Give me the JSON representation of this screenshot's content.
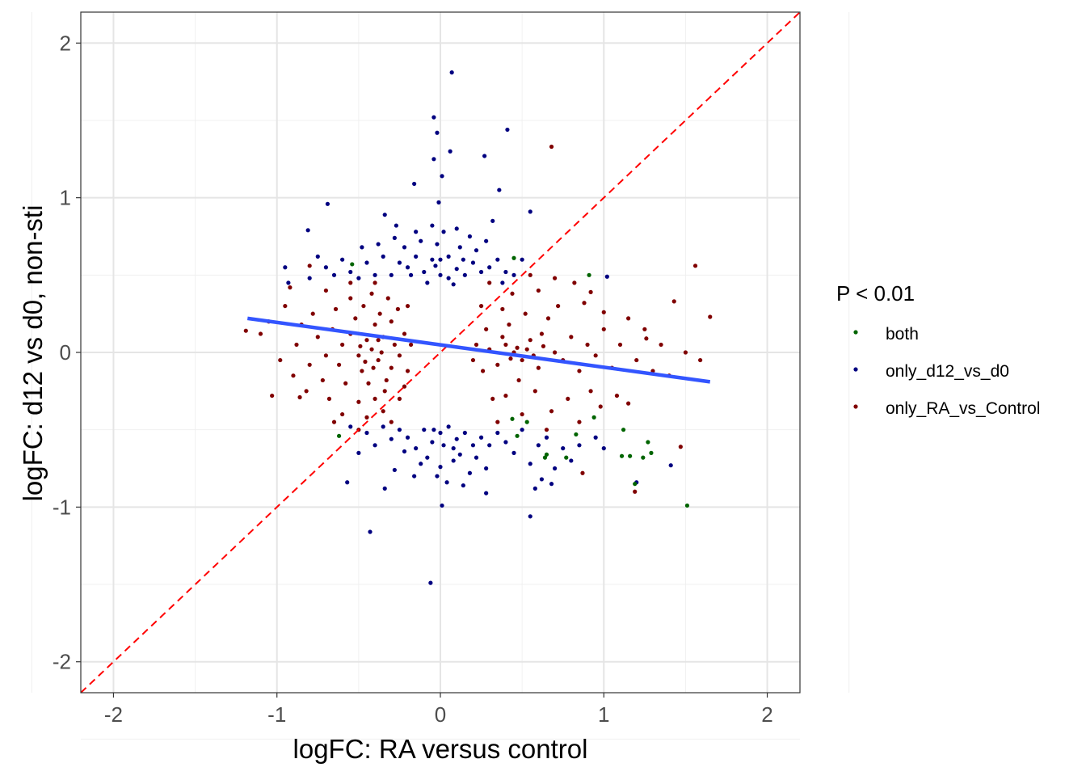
{
  "chart_data": {
    "type": "scatter",
    "xlabel": "logFC: RA versus control",
    "ylabel": "logFC: d12 vs d0, non-sti",
    "xlim": [
      -2.2,
      2.2
    ],
    "ylim": [
      -2.2,
      2.2
    ],
    "x_ticks": [
      -2,
      -1,
      0,
      1,
      2
    ],
    "y_ticks": [
      -2,
      -1,
      0,
      1,
      2
    ],
    "x_tick_labels": [
      "-2",
      "-1",
      "0",
      "1",
      "2"
    ],
    "y_tick_labels": [
      "-2",
      "-1",
      "0",
      "1",
      "2"
    ],
    "grid": true,
    "legend": {
      "title": "P < 0.01",
      "placement": "right"
    },
    "reference_line": {
      "type": "identity",
      "slope": 1,
      "intercept": 0,
      "color": "#ff0000",
      "style": "dashed"
    },
    "fit_line": {
      "x": [
        -1.18,
        1.65
      ],
      "y": [
        0.22,
        -0.19
      ],
      "color": "#3355ff"
    },
    "series": [
      {
        "name": "both",
        "color": "#006400",
        "points": [
          [
            -0.54,
            0.57
          ],
          [
            0.45,
            0.61
          ],
          [
            0.91,
            0.5
          ],
          [
            1.51,
            -0.99
          ],
          [
            1.19,
            -0.85
          ],
          [
            -0.62,
            -0.54
          ],
          [
            1.27,
            -0.58
          ],
          [
            1.29,
            -0.65
          ],
          [
            1.16,
            -0.67
          ],
          [
            0.65,
            -0.66
          ],
          [
            0.64,
            -0.68
          ],
          [
            0.77,
            -0.68
          ],
          [
            0.83,
            -0.53
          ],
          [
            1.12,
            -0.5
          ],
          [
            0.53,
            -0.45
          ],
          [
            0.44,
            -0.43
          ],
          [
            0.94,
            -0.42
          ],
          [
            0.47,
            -0.54
          ],
          [
            1.11,
            -0.67
          ],
          [
            1.24,
            -0.68
          ]
        ]
      },
      {
        "name": "only_d12_vs_d0",
        "color": "#000080",
        "points": [
          [
            0.07,
            1.81
          ],
          [
            -0.04,
            1.52
          ],
          [
            -0.02,
            1.42
          ],
          [
            0.41,
            1.44
          ],
          [
            0.06,
            1.3
          ],
          [
            -0.04,
            1.25
          ],
          [
            0.27,
            1.27
          ],
          [
            0.01,
            1.14
          ],
          [
            -0.16,
            1.09
          ],
          [
            0.36,
            1.05
          ],
          [
            -0.01,
            0.97
          ],
          [
            -0.69,
            0.96
          ],
          [
            -0.81,
            0.79
          ],
          [
            -0.34,
            0.89
          ],
          [
            0.55,
            0.91
          ],
          [
            -0.27,
            0.82
          ],
          [
            0.01,
            -0.99
          ],
          [
            -0.43,
            -1.16
          ],
          [
            -0.06,
            -1.49
          ],
          [
            0.55,
            -1.06
          ],
          [
            -0.57,
            -0.84
          ],
          [
            -0.34,
            -0.88
          ],
          [
            1.02,
            0.49
          ],
          [
            1.41,
            -0.73
          ],
          [
            -0.95,
            0.55
          ],
          [
            -0.93,
            0.45
          ],
          [
            0.28,
            -0.91
          ],
          [
            0.14,
            -0.86
          ],
          [
            -0.2,
            0.55
          ],
          [
            -0.1,
            0.52
          ],
          [
            0.0,
            0.5
          ],
          [
            0.1,
            0.54
          ],
          [
            0.2,
            0.58
          ],
          [
            -0.15,
            0.62
          ],
          [
            -0.05,
            0.6
          ],
          [
            0.05,
            0.48
          ],
          [
            0.15,
            0.5
          ],
          [
            0.25,
            0.52
          ],
          [
            -0.25,
            0.58
          ],
          [
            -0.3,
            0.5
          ],
          [
            0.3,
            0.55
          ],
          [
            0.35,
            0.6
          ],
          [
            -0.35,
            0.62
          ],
          [
            -0.08,
            0.45
          ],
          [
            0.08,
            0.44
          ],
          [
            -0.02,
            0.7
          ],
          [
            0.12,
            0.68
          ],
          [
            -0.12,
            0.72
          ],
          [
            0.22,
            0.66
          ],
          [
            -0.22,
            0.68
          ],
          [
            0.4,
            0.52
          ],
          [
            -0.4,
            0.5
          ],
          [
            -0.45,
            0.58
          ],
          [
            0.45,
            0.5
          ],
          [
            -0.5,
            0.48
          ],
          [
            -0.55,
            0.52
          ],
          [
            -0.6,
            0.6
          ],
          [
            -0.65,
            0.5
          ],
          [
            -0.7,
            0.55
          ],
          [
            -0.75,
            0.62
          ],
          [
            -0.8,
            0.48
          ],
          [
            0.02,
            0.78
          ],
          [
            -0.05,
            0.82
          ],
          [
            0.1,
            0.8
          ],
          [
            -0.15,
            0.78
          ],
          [
            0.18,
            0.75
          ],
          [
            -0.28,
            0.74
          ],
          [
            0.28,
            0.72
          ],
          [
            0.32,
            0.85
          ],
          [
            -0.38,
            0.7
          ],
          [
            0.0,
            0.6
          ],
          [
            0.05,
            0.62
          ],
          [
            -0.03,
            0.56
          ],
          [
            0.14,
            0.6
          ],
          [
            -0.18,
            0.5
          ],
          [
            0.38,
            0.45
          ],
          [
            -0.48,
            0.68
          ],
          [
            0.5,
            0.6
          ],
          [
            -0.2,
            -0.55
          ],
          [
            -0.1,
            -0.5
          ],
          [
            0.0,
            -0.52
          ],
          [
            0.1,
            -0.56
          ],
          [
            0.2,
            -0.6
          ],
          [
            -0.15,
            -0.62
          ],
          [
            -0.05,
            -0.58
          ],
          [
            0.05,
            -0.48
          ],
          [
            0.15,
            -0.52
          ],
          [
            0.25,
            -0.55
          ],
          [
            -0.25,
            -0.5
          ],
          [
            -0.3,
            -0.56
          ],
          [
            0.3,
            -0.6
          ],
          [
            0.35,
            -0.52
          ],
          [
            -0.35,
            -0.48
          ],
          [
            -0.08,
            -0.68
          ],
          [
            0.08,
            -0.7
          ],
          [
            0.0,
            -0.74
          ],
          [
            0.12,
            -0.66
          ],
          [
            -0.12,
            -0.72
          ],
          [
            0.22,
            -0.68
          ],
          [
            -0.22,
            -0.64
          ],
          [
            0.4,
            -0.58
          ],
          [
            -0.4,
            -0.6
          ],
          [
            0.45,
            -0.65
          ],
          [
            -0.45,
            -0.52
          ],
          [
            0.5,
            -0.5
          ],
          [
            0.55,
            -0.72
          ],
          [
            0.6,
            -0.6
          ],
          [
            0.65,
            -0.55
          ],
          [
            0.7,
            -0.75
          ],
          [
            0.75,
            -0.62
          ],
          [
            0.85,
            -0.6
          ],
          [
            0.95,
            -0.55
          ],
          [
            1.0,
            -0.62
          ],
          [
            -0.02,
            -0.8
          ],
          [
            0.04,
            -0.84
          ],
          [
            -0.16,
            -0.8
          ],
          [
            0.18,
            -0.78
          ],
          [
            -0.28,
            -0.76
          ],
          [
            0.28,
            -0.75
          ],
          [
            0.62,
            -0.82
          ],
          [
            0.68,
            -0.85
          ],
          [
            -0.5,
            -0.65
          ],
          [
            -0.55,
            -0.48
          ],
          [
            0.02,
            -0.6
          ],
          [
            -0.04,
            -0.5
          ],
          [
            0.08,
            -0.62
          ],
          [
            0.58,
            -0.88
          ],
          [
            0.8,
            -0.7
          ],
          [
            1.2,
            -0.84
          ]
        ]
      },
      {
        "name": "only_RA_vs_Control",
        "color": "#800000",
        "points": [
          [
            0.68,
            1.33
          ],
          [
            1.56,
            0.56
          ],
          [
            1.65,
            0.23
          ],
          [
            1.43,
            0.33
          ],
          [
            1.59,
            -0.05
          ],
          [
            -1.19,
            0.14
          ],
          [
            -1.03,
            -0.28
          ],
          [
            1.19,
            -0.9
          ],
          [
            0.87,
            -0.78
          ],
          [
            -0.86,
            -0.29
          ],
          [
            0.92,
            0.39
          ],
          [
            1.0,
            0.26
          ],
          [
            1.26,
            0.09
          ],
          [
            1.15,
            -0.33
          ],
          [
            1.47,
            -0.61
          ],
          [
            -0.8,
            0.56
          ],
          [
            -0.42,
            0.02
          ],
          [
            -0.38,
            -0.05
          ],
          [
            -0.45,
            0.08
          ],
          [
            -0.5,
            -0.02
          ],
          [
            -0.35,
            0.1
          ],
          [
            -0.3,
            -0.1
          ],
          [
            -0.55,
            0.12
          ],
          [
            -0.48,
            -0.12
          ],
          [
            -0.4,
            0.18
          ],
          [
            -0.33,
            -0.18
          ],
          [
            -0.6,
            0.05
          ],
          [
            -0.62,
            -0.08
          ],
          [
            -0.28,
            0.05
          ],
          [
            -0.25,
            -0.02
          ],
          [
            -0.44,
            -0.2
          ],
          [
            -0.52,
            0.22
          ],
          [
            -0.37,
            0.25
          ],
          [
            -0.3,
            0.2
          ],
          [
            -0.22,
            0.12
          ],
          [
            -0.2,
            -0.12
          ],
          [
            -0.58,
            -0.2
          ],
          [
            -0.66,
            0.15
          ],
          [
            -0.7,
            -0.02
          ],
          [
            -0.47,
            0.3
          ],
          [
            -0.4,
            -0.3
          ],
          [
            -0.34,
            -0.25
          ],
          [
            -0.26,
            0.28
          ],
          [
            -0.64,
            0.28
          ],
          [
            -0.72,
            -0.18
          ],
          [
            -0.5,
            -0.32
          ],
          [
            -0.42,
            0.38
          ],
          [
            -0.32,
            0.35
          ],
          [
            -0.55,
            0.35
          ],
          [
            -0.75,
            0.1
          ],
          [
            -0.8,
            -0.08
          ],
          [
            -0.78,
            0.25
          ],
          [
            -0.68,
            -0.3
          ],
          [
            -0.45,
            -0.42
          ],
          [
            -0.35,
            -0.38
          ],
          [
            -0.6,
            -0.4
          ],
          [
            -0.25,
            -0.3
          ],
          [
            -0.2,
            0.3
          ],
          [
            -0.18,
            0.05
          ],
          [
            -0.85,
            0.18
          ],
          [
            -0.9,
            -0.15
          ],
          [
            -0.88,
            0.05
          ],
          [
            -0.95,
            0.3
          ],
          [
            -0.82,
            -0.25
          ],
          [
            -0.55,
            0.45
          ],
          [
            -0.4,
            0.45
          ],
          [
            -0.7,
            0.4
          ],
          [
            -0.65,
            -0.45
          ],
          [
            -0.5,
            -0.5
          ],
          [
            -0.3,
            -0.45
          ],
          [
            -0.98,
            -0.05
          ],
          [
            -1.05,
            0.2
          ],
          [
            -1.1,
            0.12
          ],
          [
            -0.92,
            0.42
          ],
          [
            -0.22,
            -0.22
          ],
          [
            -0.38,
            0.08
          ],
          [
            -0.46,
            -0.06
          ],
          [
            -0.41,
            -0.1
          ],
          [
            -0.36,
            0.0
          ],
          [
            -0.49,
            0.04
          ],
          [
            0.45,
            0.0
          ],
          [
            0.4,
            0.05
          ],
          [
            0.5,
            -0.05
          ],
          [
            0.55,
            0.08
          ],
          [
            0.35,
            -0.08
          ],
          [
            0.3,
            0.02
          ],
          [
            0.6,
            -0.1
          ],
          [
            0.62,
            0.12
          ],
          [
            0.42,
            0.18
          ],
          [
            0.48,
            -0.18
          ],
          [
            0.7,
            0.0
          ],
          [
            0.75,
            -0.05
          ],
          [
            0.28,
            0.15
          ],
          [
            0.26,
            -0.12
          ],
          [
            0.38,
            0.28
          ],
          [
            0.52,
            0.25
          ],
          [
            0.66,
            0.22
          ],
          [
            0.58,
            -0.25
          ],
          [
            0.4,
            -0.28
          ],
          [
            0.8,
            0.1
          ],
          [
            0.85,
            -0.12
          ],
          [
            0.72,
            0.3
          ],
          [
            0.9,
            0.05
          ],
          [
            0.95,
            -0.02
          ],
          [
            0.32,
            -0.3
          ],
          [
            0.25,
            0.3
          ],
          [
            0.44,
            0.38
          ],
          [
            0.6,
            0.4
          ],
          [
            0.78,
            -0.3
          ],
          [
            0.68,
            -0.38
          ],
          [
            0.5,
            -0.4
          ],
          [
            0.35,
            -0.45
          ],
          [
            1.0,
            0.15
          ],
          [
            1.05,
            -0.1
          ],
          [
            1.1,
            0.05
          ],
          [
            1.2,
            -0.05
          ],
          [
            1.15,
            0.22
          ],
          [
            0.92,
            -0.25
          ],
          [
            0.88,
            0.32
          ],
          [
            1.25,
            0.15
          ],
          [
            1.3,
            -0.12
          ],
          [
            1.35,
            0.05
          ],
          [
            0.98,
            -0.35
          ],
          [
            1.08,
            -0.28
          ],
          [
            0.55,
            0.5
          ],
          [
            0.7,
            0.48
          ],
          [
            0.82,
            0.45
          ],
          [
            0.3,
            0.45
          ],
          [
            0.65,
            -0.5
          ],
          [
            0.85,
            -0.45
          ],
          [
            0.22,
            0.05
          ],
          [
            0.2,
            -0.05
          ],
          [
            1.4,
            -0.15
          ],
          [
            1.5,
            0.0
          ],
          [
            0.47,
            0.03
          ],
          [
            0.43,
            -0.04
          ],
          [
            0.53,
            0.02
          ],
          [
            0.38,
            0.1
          ],
          [
            0.57,
            -0.02
          ],
          [
            0.63,
            0.04
          ]
        ]
      }
    ]
  }
}
